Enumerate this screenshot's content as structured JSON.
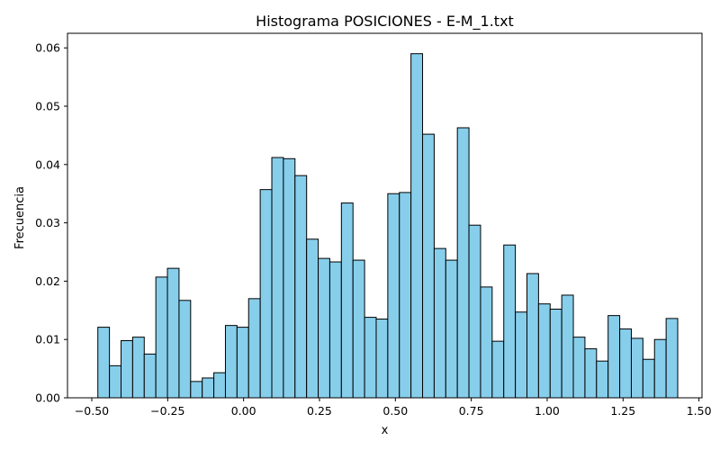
{
  "chart_data": {
    "type": "bar",
    "title": "Histograma POSICIONES - E-M_1.txt",
    "xlabel": "x",
    "ylabel": "Frecuencia",
    "xlim": [
      -0.58,
      1.51
    ],
    "ylim": [
      0,
      0.0625
    ],
    "bin_start": -0.48,
    "bin_width": 0.0382,
    "x_ticks": [
      -0.5,
      -0.25,
      0.0,
      0.25,
      0.5,
      0.75,
      1.0,
      1.25,
      1.5
    ],
    "x_tick_labels": [
      "−0.50",
      "−0.25",
      "0.00",
      "0.25",
      "0.50",
      "0.75",
      "1.00",
      "1.25",
      "1.50"
    ],
    "y_ticks": [
      0.0,
      0.01,
      0.02,
      0.03,
      0.04,
      0.05,
      0.06
    ],
    "y_tick_labels": [
      "0.00",
      "0.01",
      "0.02",
      "0.03",
      "0.04",
      "0.05",
      "0.06"
    ],
    "values": [
      0.0121,
      0.0055,
      0.0098,
      0.0104,
      0.0075,
      0.0207,
      0.0222,
      0.0167,
      0.0028,
      0.0034,
      0.0043,
      0.0124,
      0.0121,
      0.017,
      0.0357,
      0.0412,
      0.041,
      0.0381,
      0.0272,
      0.0239,
      0.0233,
      0.0334,
      0.0236,
      0.0138,
      0.0135,
      0.035,
      0.0352,
      0.059,
      0.0452,
      0.0256,
      0.0236,
      0.0463,
      0.0296,
      0.019,
      0.0097,
      0.0262,
      0.0147,
      0.0213,
      0.0161,
      0.0152,
      0.0176,
      0.0104,
      0.0084,
      0.0063,
      0.0141,
      0.0118,
      0.0102,
      0.0066,
      0.01,
      0.0136
    ],
    "bar_color": "#87ceeb",
    "edge_color": "#000000",
    "grid": false,
    "legend": "none"
  }
}
